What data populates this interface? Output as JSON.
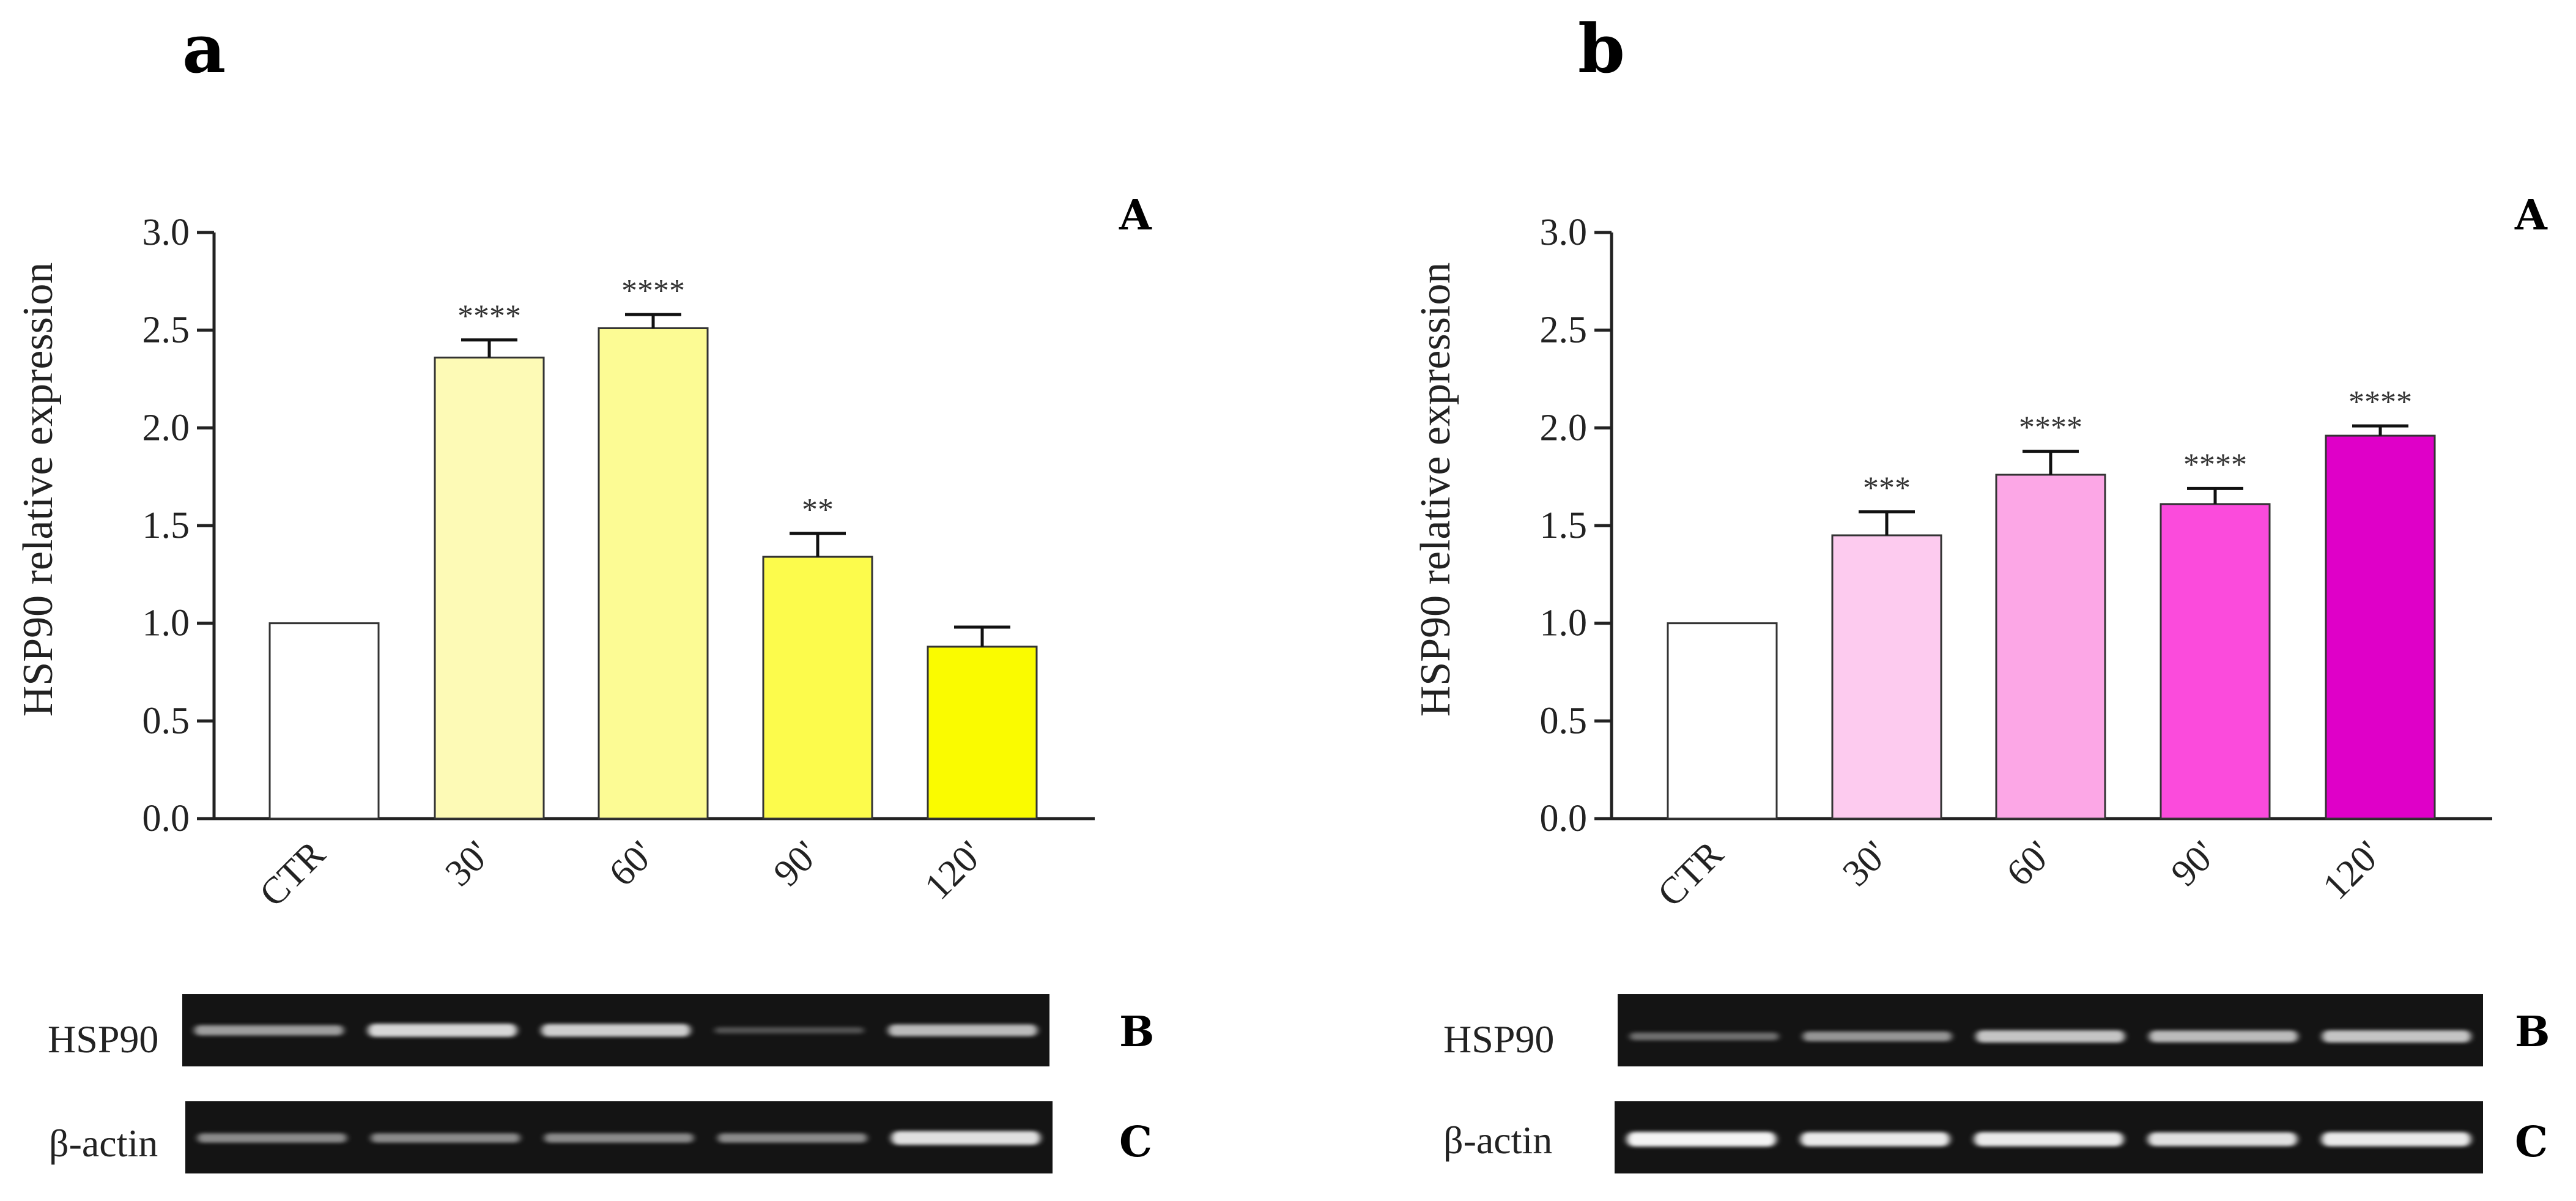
{
  "panel_letters": [
    "a",
    "b"
  ],
  "sub_letters": [
    "A",
    "B",
    "C"
  ],
  "chart_data": [
    {
      "type": "bar",
      "panel": "a",
      "title": "",
      "ylabel": "HSP90 relative expression",
      "xlabel": "",
      "categories": [
        "CTR",
        "30'",
        "60'",
        "90'",
        "120'"
      ],
      "values": [
        1.0,
        2.36,
        2.51,
        1.34,
        0.88
      ],
      "errors": [
        0.0,
        0.09,
        0.07,
        0.12,
        0.1
      ],
      "significance": [
        "",
        "****",
        "****",
        "**",
        ""
      ],
      "colors": [
        "#ffffff",
        "#fdfab6",
        "#fcfb94",
        "#fcfb4c",
        "#fafb00"
      ],
      "ylim": [
        0,
        3.0
      ],
      "yticks": [
        "0.0",
        "0.5",
        "1.0",
        "1.5",
        "2.0",
        "2.5",
        "3.0"
      ],
      "grid": false
    },
    {
      "type": "bar",
      "panel": "b",
      "title": "",
      "ylabel": "HSP90 relative expression",
      "xlabel": "",
      "categories": [
        "CTR",
        "30'",
        "60'",
        "90'",
        "120'"
      ],
      "values": [
        1.0,
        1.45,
        1.76,
        1.61,
        1.96
      ],
      "errors": [
        0.0,
        0.12,
        0.12,
        0.08,
        0.05
      ],
      "significance": [
        "",
        "***",
        "****",
        "****",
        "****"
      ],
      "colors": [
        "#ffffff",
        "#fdcbef",
        "#fca7e6",
        "#fb4bdc",
        "#df00c8"
      ],
      "ylim": [
        0,
        3.0
      ],
      "yticks": [
        "0.0",
        "0.5",
        "1.0",
        "1.5",
        "2.0",
        "2.5",
        "3.0"
      ],
      "grid": false
    }
  ],
  "blots": {
    "a": {
      "hsp90_label": "HSP90",
      "actin_label": "β-actin",
      "hsp90_intensity": [
        0.55,
        0.85,
        0.8,
        0.15,
        0.7
      ],
      "actin_intensity": [
        0.45,
        0.45,
        0.45,
        0.45,
        0.9
      ]
    },
    "b": {
      "hsp90_label": "HSP90",
      "actin_label": "β-actin",
      "hsp90_intensity": [
        0.3,
        0.5,
        0.75,
        0.7,
        0.75
      ],
      "actin_intensity": [
        1.0,
        0.95,
        0.95,
        0.9,
        0.95
      ]
    }
  }
}
